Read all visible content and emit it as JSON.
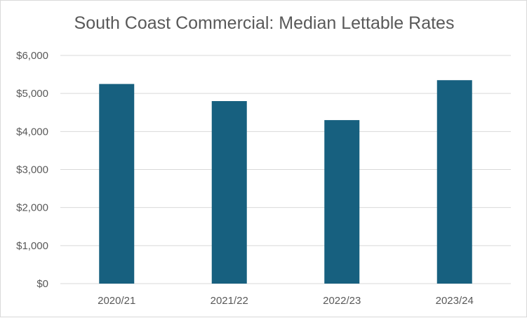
{
  "chart_data": {
    "type": "bar",
    "title": "South Coast Commercial: Median Lettable Rates",
    "xlabel": "",
    "ylabel": "",
    "categories": [
      "2020/21",
      "2021/22",
      "2022/23",
      "2023/24"
    ],
    "values": [
      5250,
      4800,
      4300,
      5350
    ],
    "ylim": [
      0,
      6000
    ],
    "yticks": [
      0,
      1000,
      2000,
      3000,
      4000,
      5000,
      6000
    ],
    "ytick_labels": [
      "$0",
      "$1,000",
      "$2,000",
      "$3,000",
      "$4,000",
      "$5,000",
      "$6,000"
    ],
    "grid": true,
    "legend": "none",
    "colors": {
      "bar": "#17607f",
      "grid": "#d9d9d9",
      "text": "#595959"
    }
  }
}
